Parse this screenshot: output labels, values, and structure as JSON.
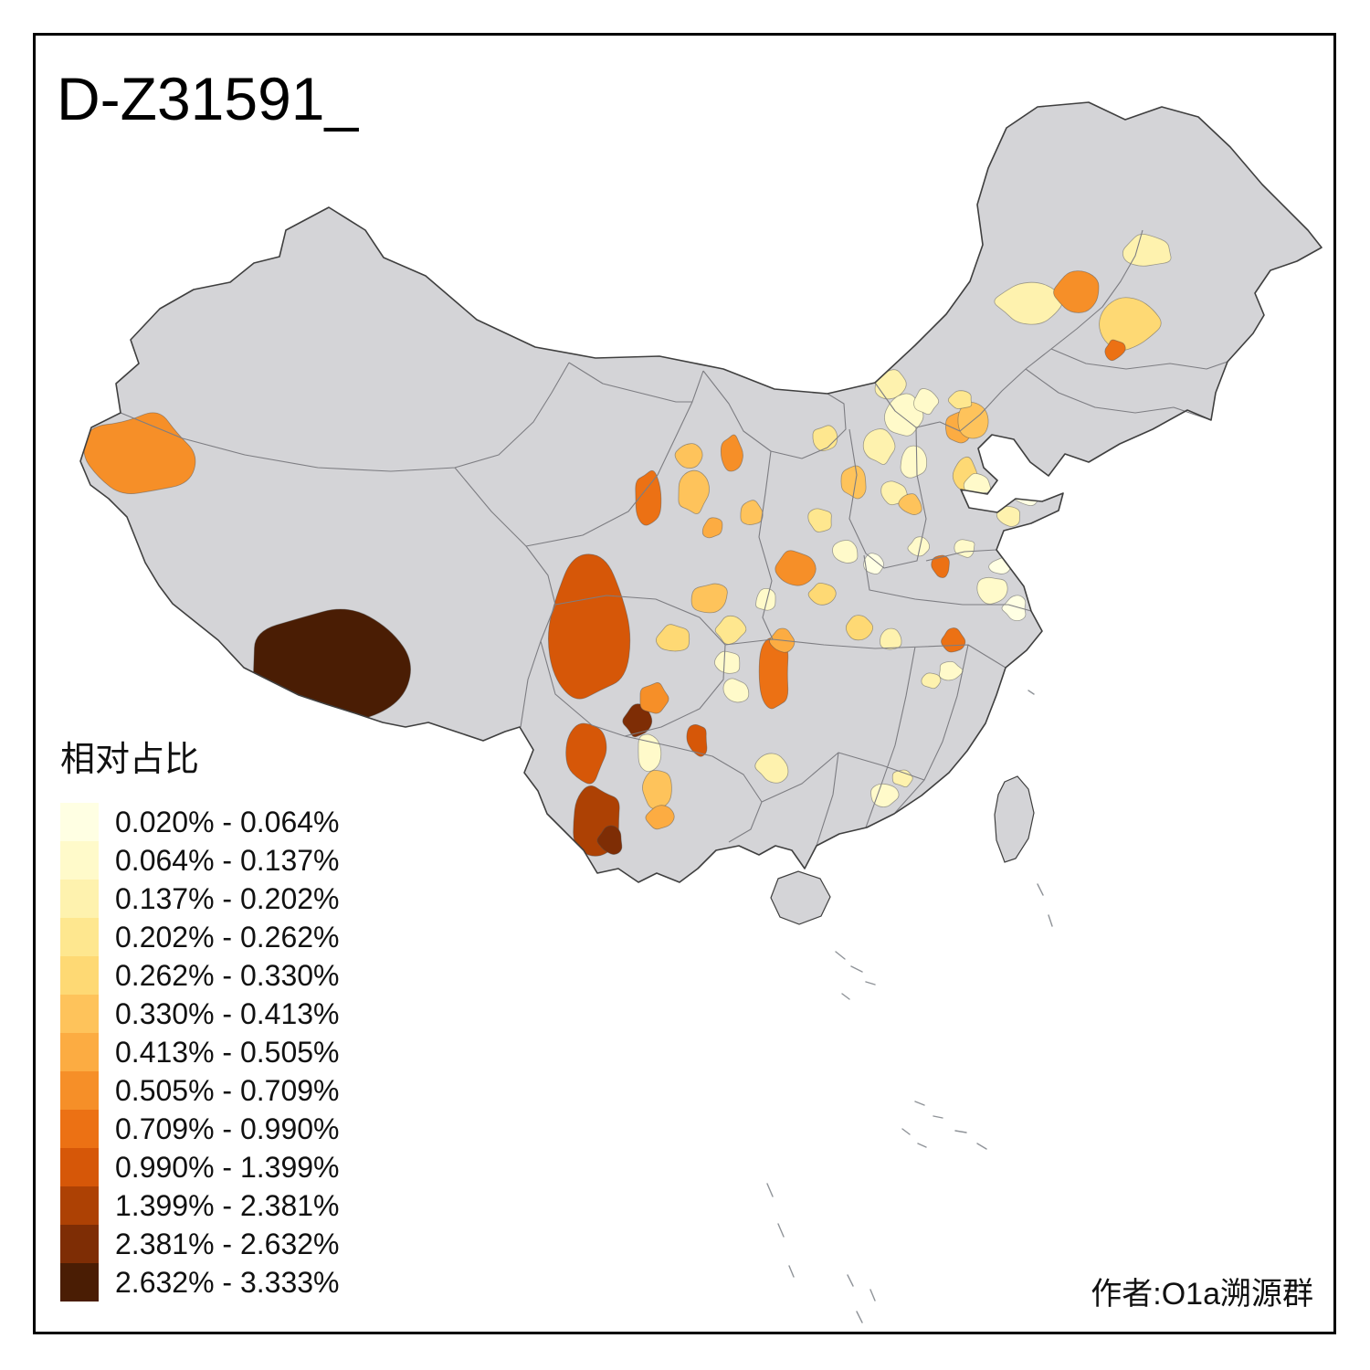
{
  "title": "D-Z31591_",
  "attribution": "作者:O1a溯源群",
  "figure": {
    "background": "#FFFFFF",
    "frame_color": "#000000"
  },
  "legend": {
    "title": "相对占比",
    "classes": [
      {
        "range": "0.020% - 0.064%",
        "color": "#FFFFE3"
      },
      {
        "range": "0.064% - 0.137%",
        "color": "#FFFACA"
      },
      {
        "range": "0.137% - 0.202%",
        "color": "#FEF2AE"
      },
      {
        "range": "0.202% - 0.262%",
        "color": "#FEE78F"
      },
      {
        "range": "0.262% - 0.330%",
        "color": "#FED974"
      },
      {
        "range": "0.330% - 0.413%",
        "color": "#FEC35B"
      },
      {
        "range": "0.413% - 0.505%",
        "color": "#FCAC42"
      },
      {
        "range": "0.505% - 0.709%",
        "color": "#F68F28"
      },
      {
        "range": "0.709% - 0.990%",
        "color": "#EC7114"
      },
      {
        "range": "0.990% - 1.399%",
        "color": "#D65708"
      },
      {
        "range": "1.399% - 2.381%",
        "color": "#AD4104"
      },
      {
        "range": "2.381% - 2.632%",
        "color": "#7E2D05"
      },
      {
        "range": "2.632% - 3.333%",
        "color": "#4A1D04"
      }
    ]
  },
  "map": {
    "base_color": "#D4D4D7",
    "outline_color": "#3F3F3F",
    "interior_border_color": "#7D7D82",
    "island_mark_color": "#8F9398",
    "regions": [
      {
        "id": "r00",
        "class_index": 7
      },
      {
        "id": "r01",
        "class_index": 12
      },
      {
        "id": "r02",
        "class_index": 9
      },
      {
        "id": "r03",
        "class_index": 11
      },
      {
        "id": "r04",
        "class_index": 9
      },
      {
        "id": "r05",
        "class_index": 10
      },
      {
        "id": "r06",
        "class_index": 11
      },
      {
        "id": "r07",
        "class_index": 1
      },
      {
        "id": "r08",
        "class_index": 5
      },
      {
        "id": "r09",
        "class_index": 6
      },
      {
        "id": "r10",
        "class_index": 7
      },
      {
        "id": "r11",
        "class_index": 4
      },
      {
        "id": "r12",
        "class_index": 5
      },
      {
        "id": "r13",
        "class_index": 3
      },
      {
        "id": "r14",
        "class_index": 1
      },
      {
        "id": "r15",
        "class_index": 8
      },
      {
        "id": "r16",
        "class_index": 6
      },
      {
        "id": "r17",
        "class_index": 9
      },
      {
        "id": "r18",
        "class_index": 1
      },
      {
        "id": "r19",
        "class_index": 7
      },
      {
        "id": "r20",
        "class_index": 4
      },
      {
        "id": "r21",
        "class_index": 1
      },
      {
        "id": "r22",
        "class_index": 8
      },
      {
        "id": "r23",
        "class_index": 5
      },
      {
        "id": "r24",
        "class_index": 5
      },
      {
        "id": "r25",
        "class_index": 7
      },
      {
        "id": "r26",
        "class_index": 5
      },
      {
        "id": "r27",
        "class_index": 6
      },
      {
        "id": "r28",
        "class_index": 5
      },
      {
        "id": "r29",
        "class_index": 2
      },
      {
        "id": "r30",
        "class_index": 1
      },
      {
        "id": "r31",
        "class_index": 1
      },
      {
        "id": "r32",
        "class_index": 2
      },
      {
        "id": "r33",
        "class_index": 1
      },
      {
        "id": "r34",
        "class_index": 6
      },
      {
        "id": "r35",
        "class_index": 4
      },
      {
        "id": "r36",
        "class_index": 2
      },
      {
        "id": "r37",
        "class_index": 5
      },
      {
        "id": "r38",
        "class_index": 5
      },
      {
        "id": "r39",
        "class_index": 3
      },
      {
        "id": "r40",
        "class_index": 3
      },
      {
        "id": "r41",
        "class_index": 1
      },
      {
        "id": "r42",
        "class_index": 0
      },
      {
        "id": "r43",
        "class_index": 4
      },
      {
        "id": "r44",
        "class_index": 2
      },
      {
        "id": "r45",
        "class_index": 8
      },
      {
        "id": "r46",
        "class_index": 1
      },
      {
        "id": "r47",
        "class_index": 1
      },
      {
        "id": "r48",
        "class_index": 0
      },
      {
        "id": "r49",
        "class_index": 0
      },
      {
        "id": "r50",
        "class_index": 1
      },
      {
        "id": "r51",
        "class_index": 2
      },
      {
        "id": "r52",
        "class_index": 8
      },
      {
        "id": "r53",
        "class_index": 1
      },
      {
        "id": "r54",
        "class_index": 2
      },
      {
        "id": "r55",
        "class_index": 2
      },
      {
        "id": "r56",
        "class_index": 1
      },
      {
        "id": "r57",
        "class_index": 2
      },
      {
        "id": "r58",
        "class_index": 2
      },
      {
        "id": "r59",
        "class_index": 7
      },
      {
        "id": "r60",
        "class_index": 4
      },
      {
        "id": "r61",
        "class_index": 2
      },
      {
        "id": "r62",
        "class_index": 8
      },
      {
        "id": "r63",
        "class_index": 5
      },
      {
        "id": "r64",
        "class_index": 3
      },
      {
        "id": "r65",
        "class_index": 1
      },
      {
        "id": "r66",
        "class_index": 0
      }
    ]
  }
}
